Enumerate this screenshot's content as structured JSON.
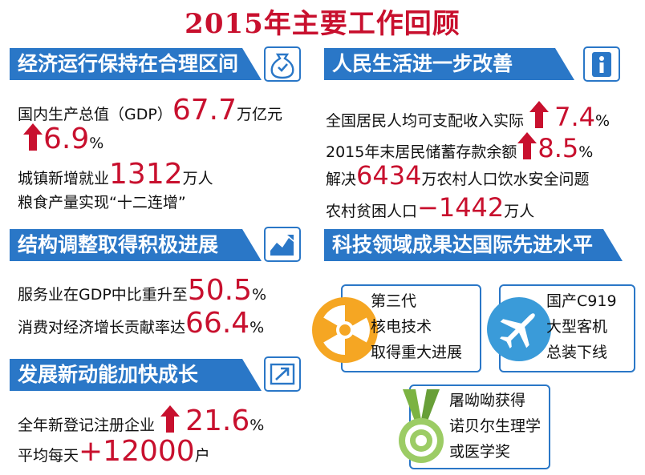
{
  "title": "2015年主要工作回顾",
  "sections": {
    "economy": {
      "heading": "经济运行保持在合理区间",
      "icon": "money-bag-icon",
      "gdp_prefix": "国内生产总值（GDP）",
      "gdp_value": "67.7",
      "gdp_unit": "万亿元",
      "gdp_growth": "6.9",
      "gdp_growth_unit": "%",
      "jobs_prefix": "城镇新增就业",
      "jobs_value": "1312",
      "jobs_unit": "万人",
      "grain": "粮食产量实现“十二连增”"
    },
    "structure": {
      "heading": "结构调整取得积极进展",
      "icon": "area-chart-icon",
      "service_prefix": "服务业在GDP中比重升至",
      "service_value": "50.5",
      "service_unit": "%",
      "consumption_prefix": "消费对经济增长贡献率达",
      "consumption_value": "66.4",
      "consumption_unit": "%"
    },
    "momentum": {
      "heading": "发展新动能加快成长",
      "icon": "trend-up-icon",
      "enterprise_prefix": "全年新登记注册企业",
      "enterprise_value": "21.6",
      "enterprise_unit": "%",
      "daily_prefix": "平均每天",
      "daily_value": "+12000",
      "daily_unit": "户"
    },
    "livelihood": {
      "heading": "人民生活进一步改善",
      "icon": "person-info-icon",
      "income_prefix": "全国居民人均可支配收入实际",
      "income_value": "7.4",
      "income_unit": "%",
      "savings_prefix": "2015年末居民储蓄存款余额",
      "savings_value": "8.5",
      "savings_unit": "%",
      "water_prefix": "解决",
      "water_value": "6434",
      "water_suffix": "万农村人口饮水安全问题",
      "poverty_prefix": "农村贫困人口",
      "poverty_value": "−1442",
      "poverty_unit": "万人"
    },
    "tech": {
      "heading": "科技领域成果达国际先进水平",
      "nuclear": [
        "第三代",
        "核电技术",
        "取得重大进展"
      ],
      "aircraft": [
        "国产C919",
        "大型客机",
        "总装下线"
      ],
      "nobel": [
        "屠呦呦获得",
        "诺贝尔生理学",
        "或医学奖"
      ],
      "icons": [
        "radiation-icon",
        "airplane-icon",
        "medal-icon"
      ]
    }
  },
  "colors": {
    "accent_red": "#c8102e",
    "banner_blue": "#2a77c7",
    "icon_orange": "#f5a623",
    "icon_blue": "#3a9bd9",
    "medal_green": "#7cb342"
  }
}
